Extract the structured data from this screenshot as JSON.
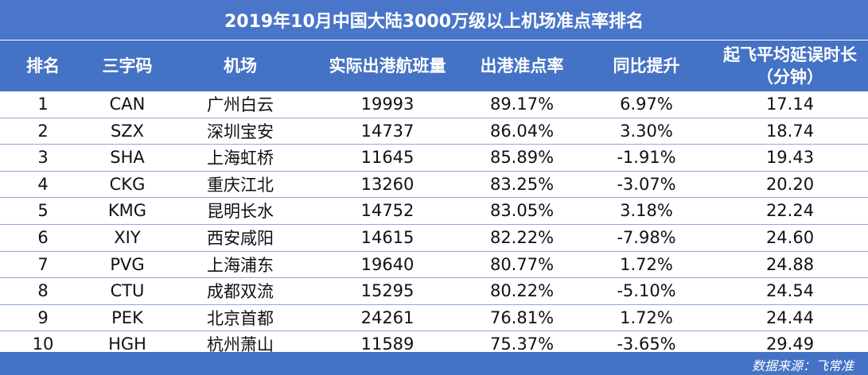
{
  "title": "2019年10月中国大陆3000万级以上机场准点率排名",
  "headers": {
    "rank": "排名",
    "code": "三字码",
    "airport": "机场",
    "flights": "实际出港航班量",
    "ontime": "出港准点率",
    "yoy": "同比提升",
    "delay_line1": "起飞平均延误时长",
    "delay_line2": "（分钟）"
  },
  "rows": [
    {
      "rank": "1",
      "code": "CAN",
      "airport": "广州白云",
      "flights": "19993",
      "ontime": "89.17%",
      "yoy": "6.97%",
      "delay": "17.14"
    },
    {
      "rank": "2",
      "code": "SZX",
      "airport": "深圳宝安",
      "flights": "14737",
      "ontime": "86.04%",
      "yoy": "3.30%",
      "delay": "18.74"
    },
    {
      "rank": "3",
      "code": "SHA",
      "airport": "上海虹桥",
      "flights": "11645",
      "ontime": "85.89%",
      "yoy": "-1.91%",
      "delay": "19.43"
    },
    {
      "rank": "4",
      "code": "CKG",
      "airport": "重庆江北",
      "flights": "13260",
      "ontime": "83.25%",
      "yoy": "-3.07%",
      "delay": "20.20"
    },
    {
      "rank": "5",
      "code": "KMG",
      "airport": "昆明长水",
      "flights": "14752",
      "ontime": "83.05%",
      "yoy": "3.18%",
      "delay": "22.24"
    },
    {
      "rank": "6",
      "code": "XIY",
      "airport": "西安咸阳",
      "flights": "14615",
      "ontime": "82.22%",
      "yoy": "-7.98%",
      "delay": "24.60"
    },
    {
      "rank": "7",
      "code": "PVG",
      "airport": "上海浦东",
      "flights": "19640",
      "ontime": "80.77%",
      "yoy": "1.72%",
      "delay": "24.88"
    },
    {
      "rank": "8",
      "code": "CTU",
      "airport": "成都双流",
      "flights": "15295",
      "ontime": "80.22%",
      "yoy": "-5.10%",
      "delay": "24.54"
    },
    {
      "rank": "9",
      "code": "PEK",
      "airport": "北京首都",
      "flights": "24261",
      "ontime": "76.81%",
      "yoy": "1.72%",
      "delay": "24.44"
    },
    {
      "rank": "10",
      "code": "HGH",
      "airport": "杭州萧山",
      "flights": "11589",
      "ontime": "75.37%",
      "yoy": "-3.65%",
      "delay": "29.49"
    }
  ],
  "source": "数据来源：飞常准",
  "colors": {
    "header_bg": "#4472c4",
    "row_border": "#8ea9db"
  }
}
